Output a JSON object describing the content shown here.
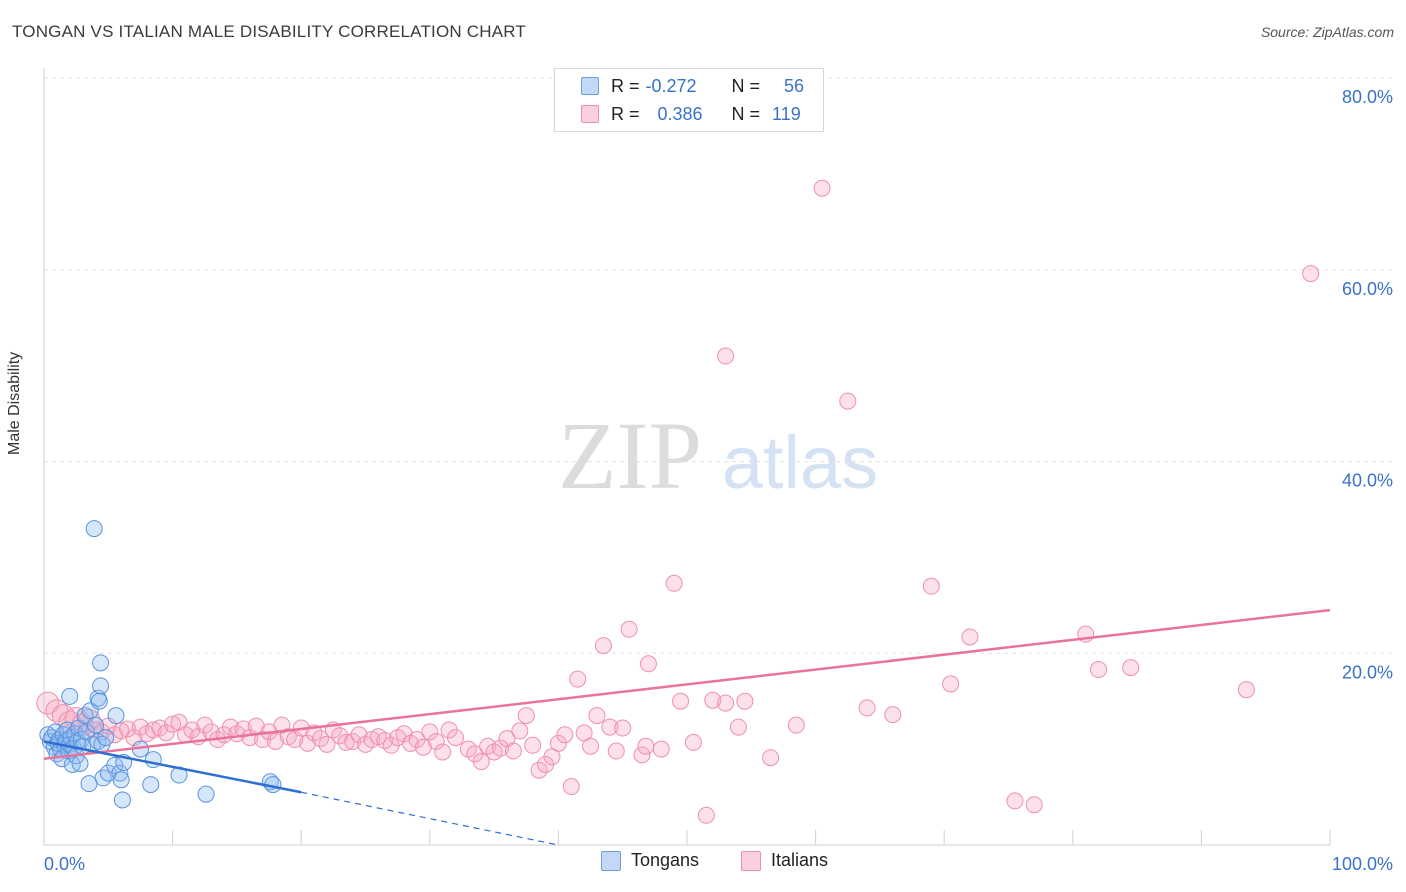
{
  "title": "TONGAN VS ITALIAN MALE DISABILITY CORRELATION CHART",
  "source": "Source: ZipAtlas.com",
  "watermark": {
    "zip": "ZIP",
    "atlas": "atlas"
  },
  "legend": {
    "rows": [
      {
        "r_label": "R =",
        "r_value": "-0.272",
        "n_label": "N =",
        "n_value": "56",
        "color": "#a9c8f0"
      },
      {
        "r_label": "R =",
        "r_value": "0.386",
        "n_label": "N =",
        "n_value": "119",
        "color": "#f7b9cc"
      }
    ]
  },
  "bottom_legend": {
    "tongans": "Tongans",
    "italians": "Italians"
  },
  "chart_data": {
    "type": "scatter",
    "title": "TONGAN VS ITALIAN MALE DISABILITY CORRELATION CHART",
    "xlabel": "",
    "ylabel": "Male Disability",
    "xlim": [
      0,
      100
    ],
    "ylim": [
      0,
      80
    ],
    "x_tick_labels": [
      "0.0%",
      "100.0%"
    ],
    "y_ticks": [
      20,
      40,
      60,
      80
    ],
    "y_tick_labels": [
      "20.0%",
      "40.0%",
      "60.0%",
      "80.0%"
    ],
    "colors": {
      "tongans": "#5b93dc",
      "italians": "#ef8fae",
      "tongans_line": "#2f6fcf",
      "italians_line": "#e8739b"
    },
    "series": [
      {
        "name": "Tongans",
        "r": -0.272,
        "n": 56,
        "trend": {
          "x0": 0,
          "y0": 10.8,
          "x1": 20,
          "y1": 5.5,
          "dashed_to_x": 40,
          "dashed_to_y": 0
        },
        "points": [
          [
            0.3,
            11.5
          ],
          [
            0.5,
            10.8
          ],
          [
            0.6,
            11.2
          ],
          [
            0.8,
            10.2
          ],
          [
            0.9,
            11.8
          ],
          [
            1.0,
            9.5
          ],
          [
            1.1,
            10.6
          ],
          [
            1.2,
            11.0
          ],
          [
            1.3,
            10.0
          ],
          [
            1.4,
            9.0
          ],
          [
            1.5,
            11.5
          ],
          [
            1.6,
            10.4
          ],
          [
            1.7,
            10.9
          ],
          [
            1.8,
            12.0
          ],
          [
            1.9,
            9.8
          ],
          [
            2.0,
            10.5
          ],
          [
            2.1,
            11.2
          ],
          [
            2.2,
            8.4
          ],
          [
            2.3,
            10.1
          ],
          [
            2.4,
            11.6
          ],
          [
            2.5,
            9.3
          ],
          [
            2.6,
            10.8
          ],
          [
            2.7,
            12.2
          ],
          [
            2.8,
            8.5
          ],
          [
            2.9,
            11.0
          ],
          [
            3.0,
            10.3
          ],
          [
            3.2,
            13.5
          ],
          [
            3.3,
            11.8
          ],
          [
            3.5,
            6.4
          ],
          [
            3.6,
            14.0
          ],
          [
            3.8,
            10.5
          ],
          [
            4.0,
            12.5
          ],
          [
            4.2,
            10.8
          ],
          [
            4.4,
            19.0
          ],
          [
            4.5,
            10.5
          ],
          [
            3.9,
            33.0
          ],
          [
            4.2,
            15.3
          ],
          [
            4.3,
            15.0
          ],
          [
            4.4,
            16.6
          ],
          [
            4.6,
            7.0
          ],
          [
            4.8,
            11.2
          ],
          [
            5.0,
            7.5
          ],
          [
            5.5,
            8.3
          ],
          [
            5.6,
            13.5
          ],
          [
            5.9,
            7.5
          ],
          [
            6.0,
            6.8
          ],
          [
            6.1,
            4.7
          ],
          [
            6.2,
            8.6
          ],
          [
            7.5,
            10.0
          ],
          [
            8.3,
            6.3
          ],
          [
            8.5,
            8.9
          ],
          [
            10.5,
            7.3
          ],
          [
            12.6,
            5.3
          ],
          [
            17.6,
            6.6
          ],
          [
            17.8,
            6.3
          ],
          [
            2.0,
            15.5
          ]
        ]
      },
      {
        "name": "Italians",
        "r": 0.386,
        "n": 119,
        "trend": {
          "x0": 0,
          "y0": 9.0,
          "x1": 100,
          "y1": 24.5
        },
        "points": [
          [
            0.3,
            14.8
          ],
          [
            1.0,
            14.0
          ],
          [
            1.5,
            13.5
          ],
          [
            2.0,
            12.8
          ],
          [
            2.5,
            13.2
          ],
          [
            3.0,
            12.5
          ],
          [
            3.5,
            13.0
          ],
          [
            4.0,
            12.0
          ],
          [
            4.5,
            11.8
          ],
          [
            5.0,
            12.4
          ],
          [
            5.5,
            11.5
          ],
          [
            6.0,
            11.9
          ],
          [
            6.5,
            12.1
          ],
          [
            7.0,
            11.2
          ],
          [
            7.5,
            12.3
          ],
          [
            8.0,
            11.6
          ],
          [
            8.5,
            12.0
          ],
          [
            9.0,
            12.2
          ],
          [
            9.5,
            11.7
          ],
          [
            10.0,
            12.6
          ],
          [
            10.5,
            12.8
          ],
          [
            11.0,
            11.5
          ],
          [
            11.5,
            12.0
          ],
          [
            12.0,
            11.3
          ],
          [
            12.5,
            12.5
          ],
          [
            13.0,
            11.8
          ],
          [
            13.5,
            11.0
          ],
          [
            14.0,
            11.5
          ],
          [
            14.5,
            12.3
          ],
          [
            15.0,
            11.6
          ],
          [
            15.5,
            12.1
          ],
          [
            16.0,
            11.2
          ],
          [
            16.5,
            12.4
          ],
          [
            17.0,
            11.0
          ],
          [
            17.5,
            11.8
          ],
          [
            18.0,
            10.8
          ],
          [
            18.5,
            12.5
          ],
          [
            19.0,
            11.3
          ],
          [
            19.5,
            11.0
          ],
          [
            20.0,
            12.2
          ],
          [
            20.5,
            10.6
          ],
          [
            21.0,
            11.7
          ],
          [
            21.5,
            11.1
          ],
          [
            22.0,
            10.5
          ],
          [
            22.5,
            12.0
          ],
          [
            23.0,
            11.4
          ],
          [
            23.5,
            10.7
          ],
          [
            24.0,
            10.8
          ],
          [
            24.5,
            11.5
          ],
          [
            25.0,
            10.5
          ],
          [
            25.5,
            11.0
          ],
          [
            26.0,
            11.3
          ],
          [
            26.5,
            10.9
          ],
          [
            27.0,
            10.4
          ],
          [
            27.5,
            11.2
          ],
          [
            28.0,
            11.6
          ],
          [
            28.5,
            10.6
          ],
          [
            29.0,
            11.0
          ],
          [
            29.5,
            10.2
          ],
          [
            30.0,
            11.8
          ],
          [
            30.5,
            10.8
          ],
          [
            31.0,
            9.7
          ],
          [
            31.5,
            12.0
          ],
          [
            32.0,
            11.2
          ],
          [
            33.0,
            10.0
          ],
          [
            33.5,
            9.5
          ],
          [
            34.0,
            8.7
          ],
          [
            34.5,
            10.3
          ],
          [
            35.0,
            9.7
          ],
          [
            35.5,
            10.1
          ],
          [
            36.0,
            11.1
          ],
          [
            36.5,
            9.8
          ],
          [
            37.0,
            11.9
          ],
          [
            37.5,
            13.5
          ],
          [
            38.0,
            10.4
          ],
          [
            38.5,
            7.8
          ],
          [
            39.0,
            8.4
          ],
          [
            39.5,
            9.2
          ],
          [
            40.0,
            10.6
          ],
          [
            40.5,
            11.5
          ],
          [
            41.0,
            6.1
          ],
          [
            41.5,
            17.3
          ],
          [
            42.0,
            11.7
          ],
          [
            42.5,
            10.3
          ],
          [
            43.0,
            13.5
          ],
          [
            43.5,
            20.8
          ],
          [
            44.0,
            12.3
          ],
          [
            44.5,
            9.8
          ],
          [
            45.0,
            12.2
          ],
          [
            45.5,
            22.5
          ],
          [
            46.5,
            9.4
          ],
          [
            46.8,
            10.3
          ],
          [
            47.0,
            18.9
          ],
          [
            48.0,
            10.0
          ],
          [
            49.0,
            27.3
          ],
          [
            49.5,
            15.0
          ],
          [
            50.5,
            10.7
          ],
          [
            51.5,
            3.1
          ],
          [
            52.0,
            15.1
          ],
          [
            53.0,
            14.8
          ],
          [
            53.0,
            51.0
          ],
          [
            54.0,
            12.3
          ],
          [
            54.5,
            15.0
          ],
          [
            56.5,
            9.1
          ],
          [
            58.5,
            12.5
          ],
          [
            60.5,
            68.5
          ],
          [
            62.5,
            46.3
          ],
          [
            64.0,
            14.3
          ],
          [
            66.0,
            13.6
          ],
          [
            69.0,
            27.0
          ],
          [
            70.5,
            16.8
          ],
          [
            72.0,
            21.7
          ],
          [
            75.5,
            4.6
          ],
          [
            77.0,
            4.2
          ],
          [
            81.0,
            22.0
          ],
          [
            82.0,
            18.3
          ],
          [
            84.5,
            18.5
          ],
          [
            93.5,
            16.2
          ],
          [
            98.5,
            59.6
          ]
        ]
      }
    ]
  }
}
